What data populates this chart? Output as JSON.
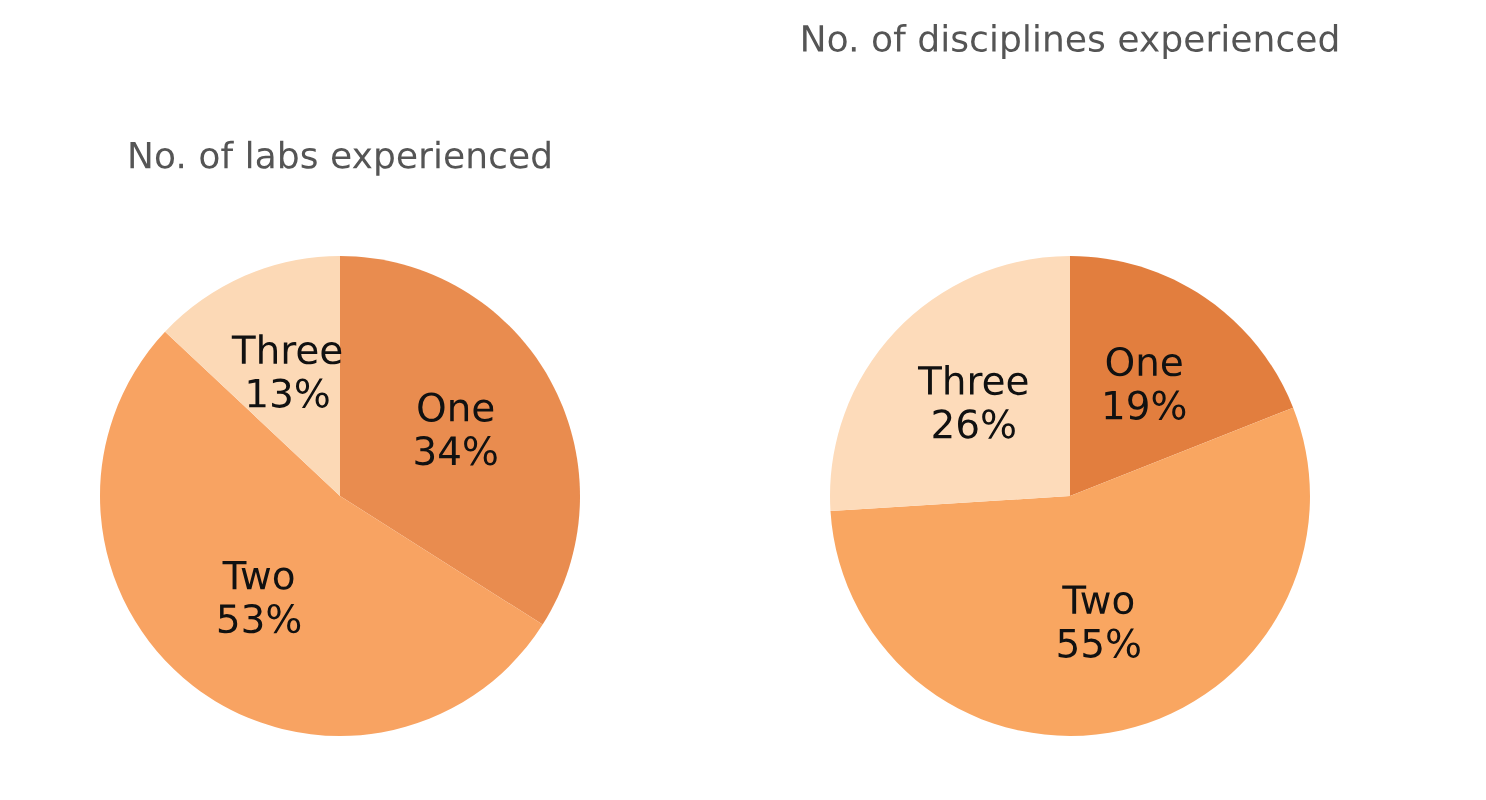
{
  "chart_data": [
    {
      "type": "pie",
      "title": "No. of labs experienced",
      "categories": [
        "One",
        "Two",
        "Three"
      ],
      "values": [
        34,
        53,
        13
      ],
      "value_labels": [
        "34%",
        "53%",
        "13%"
      ],
      "colors": [
        "#e98c4f",
        "#f8a362",
        "#fcd9b6"
      ]
    },
    {
      "type": "pie",
      "title": "No. of disciplines experienced",
      "categories": [
        "One",
        "Two",
        "Three"
      ],
      "values": [
        19,
        55,
        26
      ],
      "value_labels": [
        "19%",
        "55%",
        "26%"
      ],
      "colors": [
        "#e27e3e",
        "#f9a661",
        "#fddbba"
      ]
    }
  ]
}
